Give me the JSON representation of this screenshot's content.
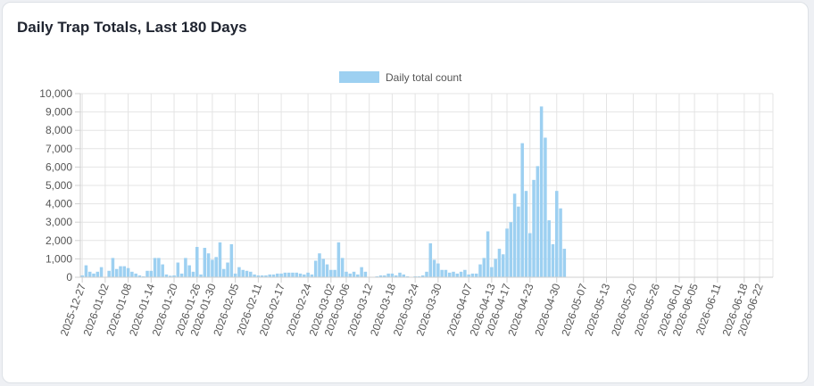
{
  "card": {
    "title": "Daily Trap Totals, Last 180 Days"
  },
  "chart_data": {
    "type": "bar",
    "start_date": "2025-12-27",
    "day_count": 181,
    "tick_labels": [
      "2025-12-27",
      "2026-01-02",
      "2026-01-08",
      "2026-01-14",
      "2026-01-20",
      "2026-01-26",
      "2026-01-30",
      "2026-02-05",
      "2026-02-11",
      "2026-02-17",
      "2026-02-24",
      "2026-03-02",
      "2026-03-06",
      "2026-03-12",
      "2026-03-18",
      "2026-03-24",
      "2026-03-30",
      "2026-04-07",
      "2026-04-13",
      "2026-04-17",
      "2026-04-23",
      "2026-04-30",
      "2026-05-07",
      "2026-05-13",
      "2026-05-20",
      "2026-05-26",
      "2026-06-01",
      "2026-06-05",
      "2026-06-11",
      "2026-06-18",
      "2026-06-22"
    ],
    "series": [
      {
        "name": "Daily total count",
        "color": "#9dd0f1",
        "values": [
          100,
          650,
          300,
          200,
          300,
          550,
          0,
          350,
          1050,
          450,
          600,
          600,
          500,
          300,
          200,
          100,
          50,
          350,
          350,
          1050,
          1050,
          700,
          150,
          80,
          100,
          800,
          200,
          1050,
          650,
          300,
          1650,
          150,
          1600,
          1300,
          950,
          1100,
          1900,
          450,
          800,
          1800,
          200,
          550,
          400,
          350,
          300,
          150,
          100,
          100,
          100,
          150,
          150,
          200,
          200,
          250,
          250,
          250,
          250,
          200,
          150,
          250,
          150,
          900,
          1300,
          1000,
          700,
          400,
          400,
          1900,
          1050,
          300,
          200,
          300,
          150,
          550,
          300,
          0,
          0,
          50,
          100,
          100,
          200,
          200,
          100,
          250,
          150,
          50,
          0,
          50,
          50,
          100,
          300,
          1850,
          950,
          750,
          400,
          400,
          250,
          300,
          200,
          300,
          400,
          150,
          200,
          200,
          700,
          1050,
          2500,
          550,
          1000,
          1550,
          1250,
          2650,
          3000,
          4550,
          3850,
          7300,
          4700,
          2400,
          5300,
          6050,
          9300,
          7600,
          3100,
          1800,
          4700,
          3750,
          1550
        ]
      }
    ],
    "ylim": [
      0,
      10000
    ],
    "y_ticks": [
      "0",
      "1,000",
      "2,000",
      "3,000",
      "4,000",
      "5,000",
      "6,000",
      "7,000",
      "8,000",
      "9,000",
      "10,000"
    ],
    "grid": true,
    "legend_position": "top-center"
  }
}
